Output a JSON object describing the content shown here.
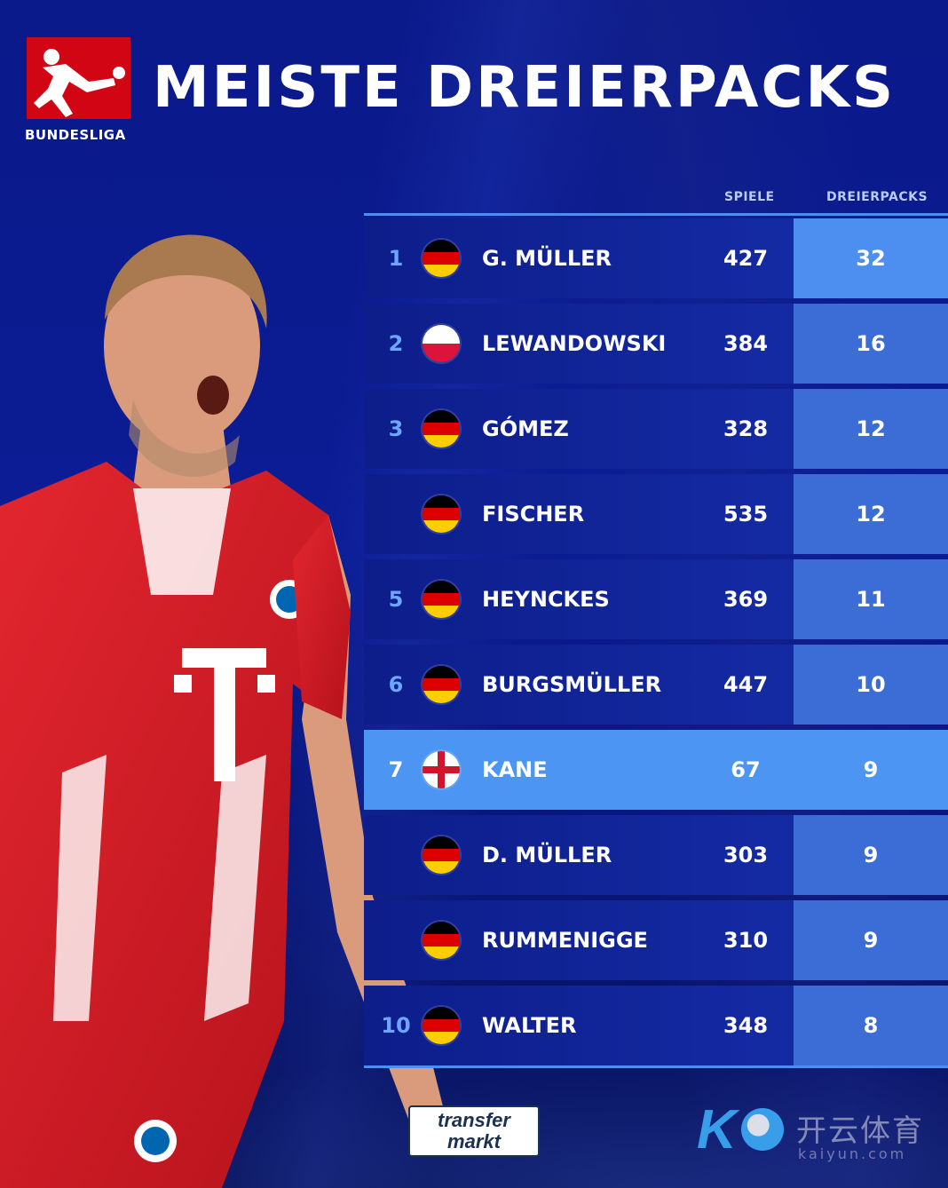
{
  "brand": {
    "league_label": "BUNDESLIGA",
    "league_color": "#d20515"
  },
  "title": "MEISTE DREIERPACKS",
  "table": {
    "columns": {
      "games": "SPIELE",
      "hattricks": "DREIERPACKS"
    },
    "accent_color": "#4d8ff0",
    "rows": [
      {
        "rank": "1",
        "flag": "germany-flag-icon",
        "name": "G. MÜLLER",
        "games": "427",
        "hattricks": "32",
        "games_color": "#ffffff",
        "hat_color": "#ffffff"
      },
      {
        "rank": "2",
        "flag": "poland-flag-icon",
        "name": "LEWANDOWSKI",
        "games": "384",
        "hattricks": "16",
        "games_color": "#ffffff",
        "hat_color": "#ffffff"
      },
      {
        "rank": "3",
        "flag": "germany-flag-icon",
        "name": "GÓMEZ",
        "games": "328",
        "hattricks": "12",
        "games_color": "#ffffff",
        "hat_color": "#ffffff"
      },
      {
        "rank": "",
        "flag": "germany-flag-icon",
        "name": "FISCHER",
        "games": "535",
        "hattricks": "12",
        "games_color": "#ffffff",
        "hat_color": "#ffffff"
      },
      {
        "rank": "5",
        "flag": "germany-flag-icon",
        "name": "HEYNCKES",
        "games": "369",
        "hattricks": "11",
        "games_color": "#ffffff",
        "hat_color": "#ffffff"
      },
      {
        "rank": "6",
        "flag": "germany-flag-icon",
        "name": "BURGSMÜLLER",
        "games": "447",
        "hattricks": "10",
        "games_color": "#ffffff",
        "hat_color": "#ffffff"
      },
      {
        "rank": "7",
        "flag": "england-flag-icon",
        "name": "KANE",
        "games": "67",
        "hattricks": "9",
        "games_color": "#ffffff",
        "hat_color": "#ffffff",
        "highlighted": true
      },
      {
        "rank": "",
        "flag": "germany-flag-icon",
        "name": "D. MÜLLER",
        "games": "303",
        "hattricks": "9",
        "games_color": "#ffffff",
        "hat_color": "#ffffff"
      },
      {
        "rank": "",
        "flag": "germany-flag-icon",
        "name": "RUMMENIGGE",
        "games": "310",
        "hattricks": "9",
        "games_color": "#ffffff",
        "hat_color": "#ffffff"
      },
      {
        "rank": "10",
        "flag": "germany-flag-icon",
        "name": "WALTER",
        "games": "348",
        "hattricks": "8",
        "games_color": "#ffffff",
        "hat_color": "#ffffff"
      }
    ]
  },
  "footer": {
    "source_logo": {
      "line1": "transfer",
      "line2": "markt"
    },
    "watermark": {
      "cn": "开云体育",
      "url": "kaiyun.com"
    }
  }
}
